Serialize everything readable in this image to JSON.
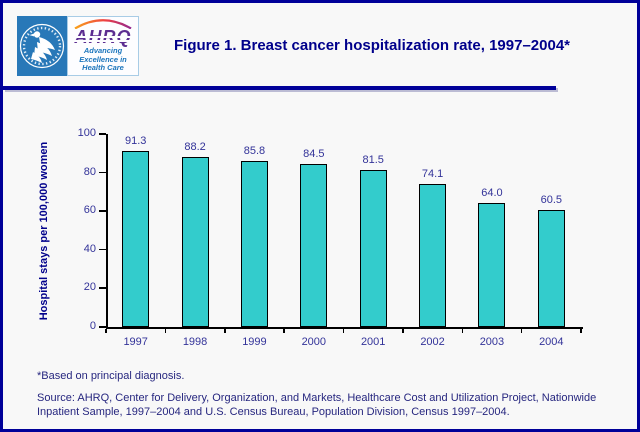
{
  "header": {
    "title": "Figure 1. Breast cancer hospitalization rate, 1997–2004*",
    "logo": {
      "acronym": "AHRQ",
      "tagline1": "Advancing",
      "tagline2": "Excellence in",
      "tagline3": "Health Care",
      "seal_name": "hhs-department-seal"
    }
  },
  "chart_data": {
    "type": "bar",
    "title": "Figure 1. Breast cancer hospitalization rate, 1997–2004*",
    "categories": [
      "1997",
      "1998",
      "1999",
      "2000",
      "2001",
      "2002",
      "2003",
      "2004"
    ],
    "values": [
      91.3,
      88.2,
      85.8,
      84.5,
      81.5,
      74.1,
      64.0,
      60.5
    ],
    "value_labels": [
      "91.3",
      "88.2",
      "85.8",
      "84.5",
      "81.5",
      "74.1",
      "64.0",
      "60.5"
    ],
    "xlabel": "",
    "ylabel": "Hospital stays per 100,000 women",
    "ylim": [
      0,
      100
    ],
    "yticks": [
      0,
      20,
      40,
      60,
      80,
      100
    ],
    "grid": false,
    "legend": null,
    "bar_color": "#33cccc",
    "bar_border_color": "#000000"
  },
  "footer": {
    "footnote": "*Based on principal diagnosis.",
    "source": "Source: AHRQ, Center for Delivery, Organization, and Markets, Healthcare Cost and Utilization Project, Nationwide Inpatient Sample, 1997–2004 and U.S. Census Bureau, Population Division, Census 1997–2004."
  },
  "colors": {
    "page_border": "#000099",
    "background": "#f8f8f8",
    "title_navy": "#00008b",
    "chart_label_blue": "#333399",
    "footer_navy": "#26267f",
    "hhs_blue": "#2878b8",
    "ahrq_purple": "#5c2d91",
    "tagline_blue": "#1b75bc",
    "bar_fill": "#33cccc"
  }
}
